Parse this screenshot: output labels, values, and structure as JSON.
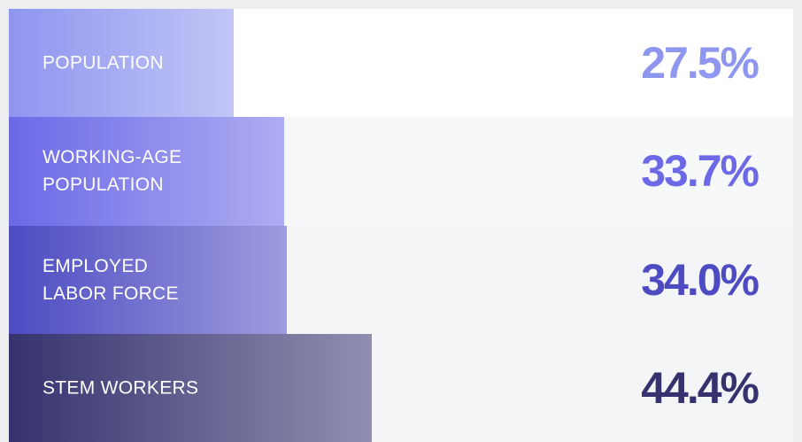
{
  "chart_data": {
    "type": "bar",
    "orientation": "horizontal",
    "categories": [
      "POPULATION",
      "WORKING-AGE POPULATION",
      "EMPLOYED LABOR FORCE",
      "STEM WORKERS"
    ],
    "values": [
      27.5,
      33.7,
      34.0,
      44.4
    ],
    "value_labels": [
      "27.5%",
      "33.7%",
      "34.0%",
      "44.4%"
    ],
    "colors": [
      "#8f96ef",
      "#6c69e7",
      "#4e4bc2",
      "#36326f"
    ],
    "xlim": [
      0,
      96
    ]
  }
}
